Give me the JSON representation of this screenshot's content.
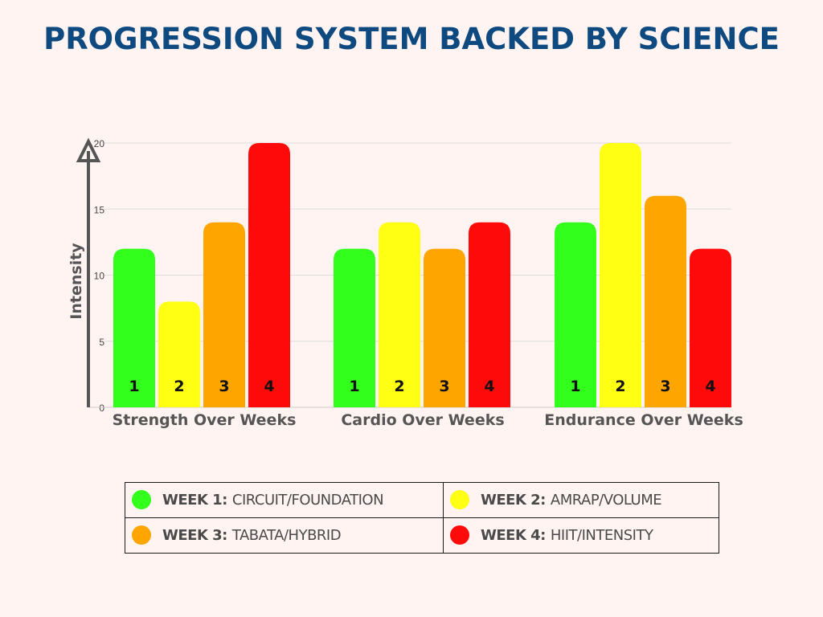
{
  "title": "PROGRESSION SYSTEM BACKED BY SCIENCE",
  "colors": {
    "title": "#0e4a80",
    "week1": "#33ff1c",
    "week2": "#ffff14",
    "week3": "#ffa500",
    "week4": "#ff0a0a",
    "axis": "#555555",
    "grid": "#dddddd"
  },
  "chart_data": {
    "type": "bar",
    "ylabel": "Intensity",
    "ylim": [
      0,
      20
    ],
    "yticks": [
      "0",
      "5",
      "10",
      "15",
      "20"
    ],
    "grid": true,
    "groups": [
      {
        "name": "Strength Over Weeks",
        "labels": [
          "1",
          "2",
          "3",
          "4"
        ],
        "values": [
          12,
          8,
          14,
          20
        ]
      },
      {
        "name": "Cardio Over Weeks",
        "labels": [
          "1",
          "2",
          "3",
          "4"
        ],
        "values": [
          12,
          14,
          12,
          14
        ]
      },
      {
        "name": "Endurance Over Weeks",
        "labels": [
          "1",
          "2",
          "3",
          "4"
        ],
        "values": [
          14,
          20,
          16,
          12
        ]
      }
    ]
  },
  "legend": [
    {
      "week": "WEEK 1:",
      "desc": "CIRCUIT/FOUNDATION",
      "color": "#33ff1c"
    },
    {
      "week": "WEEK 2:",
      "desc": "AMRAP/VOLUME",
      "color": "#ffff14"
    },
    {
      "week": "WEEK 3:",
      "desc": "TABATA/HYBRID",
      "color": "#ffa500"
    },
    {
      "week": "WEEK 4:",
      "desc": "HIIT/INTENSITY",
      "color": "#ff0a0a"
    }
  ]
}
